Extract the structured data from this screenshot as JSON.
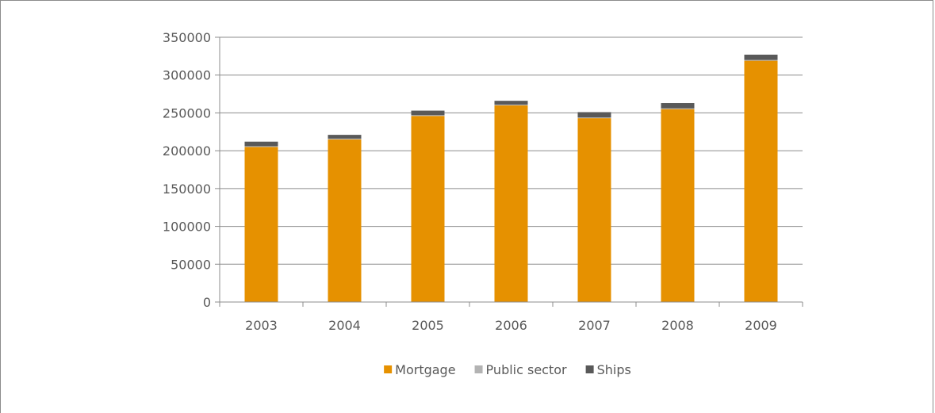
{
  "chart_data": {
    "type": "bar",
    "stacked": true,
    "categories": [
      "2003",
      "2004",
      "2005",
      "2006",
      "2007",
      "2008",
      "2009"
    ],
    "series": [
      {
        "name": "Mortgage",
        "color": "#e69100",
        "values": [
          205000,
          215000,
          246000,
          260000,
          243000,
          255000,
          319000
        ]
      },
      {
        "name": "Public sector",
        "color": "#b3b3b3",
        "values": [
          1000,
          1000,
          1000,
          1000,
          1000,
          1000,
          1000
        ]
      },
      {
        "name": "Ships",
        "color": "#595959",
        "values": [
          6000,
          5000,
          6000,
          5000,
          7000,
          7000,
          7000
        ]
      }
    ],
    "ylim": [
      0,
      350000
    ],
    "yticks": [
      "0",
      "50000",
      "100000",
      "150000",
      "200000",
      "250000",
      "300000",
      "350000"
    ],
    "grid": true,
    "legend_position": "bottom",
    "title": "",
    "xlabel": "",
    "ylabel": ""
  }
}
